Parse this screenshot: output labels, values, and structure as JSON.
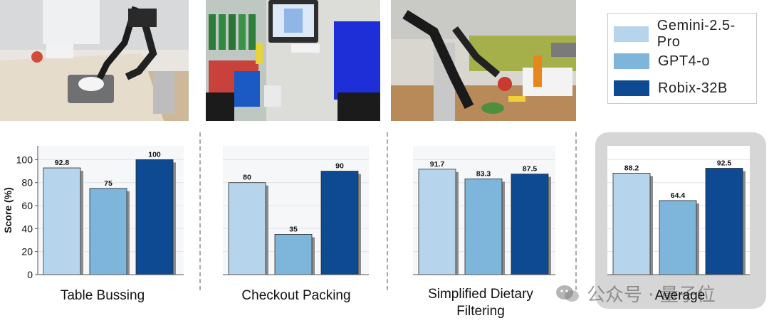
{
  "legend": {
    "items": [
      {
        "label": "Gemini-2.5-Pro",
        "color": "#b6d4ec"
      },
      {
        "label": "GPT4-o",
        "color": "#7db5db"
      },
      {
        "label": "Robix-32B",
        "color": "#0d4a92"
      }
    ]
  },
  "photos": [
    {
      "scene": "robot-arm-table-bussing"
    },
    {
      "scene": "checkout-counter-with-basket"
    },
    {
      "scene": "robot-arm-dietary-filtering"
    }
  ],
  "chart_data": [
    {
      "type": "bar",
      "title": "Table Bussing",
      "categories": [
        "Gemini-2.5-Pro",
        "GPT4-o",
        "Robix-32B"
      ],
      "values": [
        92.8,
        75,
        100
      ],
      "value_labels": [
        "92.8",
        "75",
        "100"
      ],
      "ylabel": "Score (%)",
      "yticks": [
        "0",
        "20",
        "40",
        "60",
        "80",
        "100"
      ],
      "ylim": [
        0,
        112
      ]
    },
    {
      "type": "bar",
      "title": "Checkout Packing",
      "categories": [
        "Gemini-2.5-Pro",
        "GPT4-o",
        "Robix-32B"
      ],
      "values": [
        80,
        35,
        90
      ],
      "value_labels": [
        "80",
        "35",
        "90"
      ],
      "ylim": [
        0,
        112
      ]
    },
    {
      "type": "bar",
      "title": "Simplified Dietary Filtering",
      "categories": [
        "Gemini-2.5-Pro",
        "GPT4-o",
        "Robix-32B"
      ],
      "values": [
        91.7,
        83.3,
        87.5
      ],
      "value_labels": [
        "91.7",
        "83.3",
        "87.5"
      ],
      "ylim": [
        0,
        112
      ]
    },
    {
      "type": "bar",
      "title": "Average",
      "categories": [
        "Gemini-2.5-Pro",
        "GPT4-o",
        "Robix-32B"
      ],
      "values": [
        88.2,
        64.4,
        92.5
      ],
      "value_labels": [
        "88.2",
        "64.4",
        "92.5"
      ],
      "ylim": [
        0,
        112
      ]
    }
  ],
  "watermark": {
    "text": "公众号 · 量子位"
  }
}
